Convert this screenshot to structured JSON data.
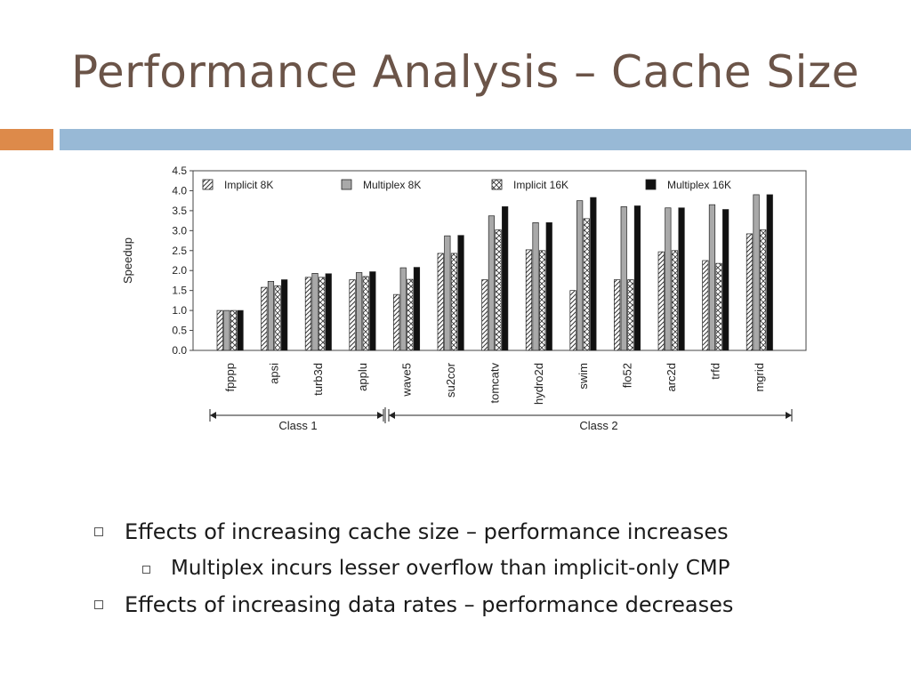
{
  "slide": {
    "title": "Performance Analysis – Cache Size",
    "bullets": [
      {
        "level": 1,
        "text": "Effects of increasing cache size – performance increases"
      },
      {
        "level": 2,
        "text": "Multiplex incurs lesser overflow than implicit-only CMP"
      },
      {
        "level": 1,
        "text": "Effects of increasing data rates – performance decreases"
      }
    ]
  },
  "colors": {
    "title": "#6b5448",
    "accent_orange": "#dd8a4a",
    "accent_blue": "#98b9d6",
    "multiplex_8k": "#a9a9a9",
    "multiplex_16k": "#111111"
  },
  "chart_data": {
    "type": "bar",
    "title": "",
    "xlabel": "",
    "ylabel": "Speedup",
    "ylim": [
      0,
      4.5
    ],
    "yticks": [
      "0.0",
      "0.5",
      "1.0",
      "1.5",
      "2.0",
      "2.5",
      "3.0",
      "3.5",
      "4.0",
      "4.5"
    ],
    "legend_position": "top",
    "categories": [
      "fpppp",
      "apsi",
      "turb3d",
      "applu",
      "wave5",
      "su2cor",
      "tomcatv",
      "hydro2d",
      "swim",
      "flo52",
      "arc2d",
      "trfd",
      "mgrid"
    ],
    "series": [
      {
        "name": "Implicit 8K",
        "pattern": "diagonal-hatch",
        "values": [
          1.0,
          1.58,
          1.83,
          1.77,
          1.4,
          2.43,
          1.77,
          2.52,
          1.5,
          1.77,
          2.47,
          2.25,
          2.92
        ]
      },
      {
        "name": "Multiplex 8K",
        "pattern": "solid-gray",
        "values": [
          1.0,
          1.73,
          1.93,
          1.95,
          2.07,
          2.87,
          3.37,
          3.2,
          3.75,
          3.6,
          3.57,
          3.65,
          3.9
        ]
      },
      {
        "name": "Implicit 16K",
        "pattern": "cross-hatch",
        "values": [
          1.0,
          1.62,
          1.83,
          1.85,
          1.78,
          2.43,
          3.02,
          2.5,
          3.3,
          1.77,
          2.5,
          2.18,
          3.02
        ]
      },
      {
        "name": "Multiplex 16K",
        "pattern": "solid-black",
        "values": [
          1.0,
          1.77,
          1.92,
          1.97,
          2.08,
          2.88,
          3.6,
          3.2,
          3.83,
          3.62,
          3.57,
          3.53,
          3.9
        ]
      }
    ],
    "groups": [
      {
        "label": "Class 1",
        "categories": [
          "fpppp",
          "apsi",
          "turb3d",
          "applu"
        ]
      },
      {
        "label": "Class 2",
        "categories": [
          "wave5",
          "su2cor",
          "tomcatv",
          "hydro2d",
          "swim",
          "flo52",
          "arc2d",
          "trfd",
          "mgrid"
        ]
      }
    ]
  }
}
